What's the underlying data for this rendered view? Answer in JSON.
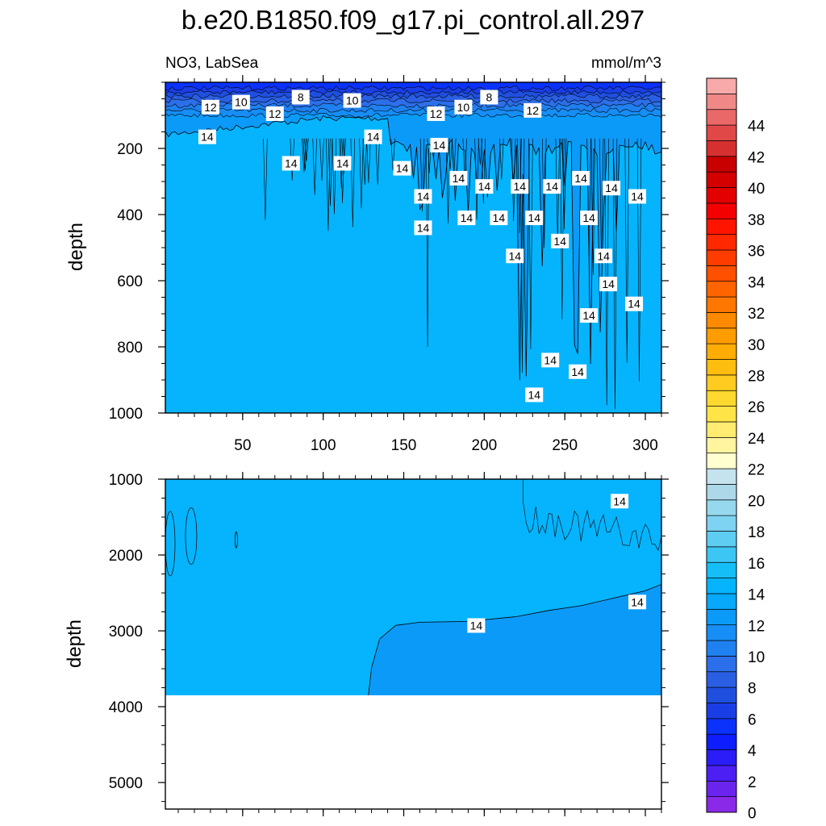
{
  "chart_data": {
    "type": "heatmap",
    "title": "b.e20.B1850.f09_g17.pi_control.all.297",
    "subtitle_left": "NO3, LabSea",
    "subtitle_right": "mmol/m^3",
    "panels": [
      {
        "name": "upper",
        "ylabel": "depth",
        "ylim": [
          1000,
          0
        ],
        "xlim": [
          2,
          310
        ],
        "xticks": [
          50,
          100,
          150,
          200,
          250,
          300
        ],
        "yticks": [
          200,
          400,
          600,
          800,
          1000
        ],
        "contour_labels": [
          {
            "text": "12",
            "x": 30,
            "y": 75
          },
          {
            "text": "10",
            "x": 49,
            "y": 60
          },
          {
            "text": "8",
            "x": 86,
            "y": 45
          },
          {
            "text": "12",
            "x": 70,
            "y": 95
          },
          {
            "text": "10",
            "x": 118,
            "y": 55
          },
          {
            "text": "12",
            "x": 170,
            "y": 95
          },
          {
            "text": "10",
            "x": 187,
            "y": 75
          },
          {
            "text": "8",
            "x": 203,
            "y": 45
          },
          {
            "text": "12",
            "x": 230,
            "y": 85
          },
          {
            "text": "14",
            "x": 28,
            "y": 165
          },
          {
            "text": "14",
            "x": 80,
            "y": 245
          },
          {
            "text": "14",
            "x": 112,
            "y": 245
          },
          {
            "text": "14",
            "x": 131,
            "y": 165
          },
          {
            "text": "14",
            "x": 149,
            "y": 260
          },
          {
            "text": "14",
            "x": 172,
            "y": 190
          },
          {
            "text": "14",
            "x": 184,
            "y": 290
          },
          {
            "text": "14",
            "x": 200,
            "y": 315
          },
          {
            "text": "14",
            "x": 222,
            "y": 315
          },
          {
            "text": "14",
            "x": 242,
            "y": 315
          },
          {
            "text": "14",
            "x": 260,
            "y": 290
          },
          {
            "text": "14",
            "x": 279,
            "y": 320
          },
          {
            "text": "14",
            "x": 295,
            "y": 345
          },
          {
            "text": "14",
            "x": 162,
            "y": 345
          },
          {
            "text": "14",
            "x": 162,
            "y": 440
          },
          {
            "text": "14",
            "x": 189,
            "y": 410
          },
          {
            "text": "14",
            "x": 209,
            "y": 410
          },
          {
            "text": "14",
            "x": 231,
            "y": 410
          },
          {
            "text": "14",
            "x": 265,
            "y": 410
          },
          {
            "text": "14",
            "x": 219,
            "y": 525
          },
          {
            "text": "14",
            "x": 247,
            "y": 480
          },
          {
            "text": "14",
            "x": 274,
            "y": 525
          },
          {
            "text": "14",
            "x": 277,
            "y": 610
          },
          {
            "text": "14",
            "x": 265,
            "y": 705
          },
          {
            "text": "14",
            "x": 293,
            "y": 670
          },
          {
            "text": "14",
            "x": 241,
            "y": 840
          },
          {
            "text": "14",
            "x": 258,
            "y": 875
          },
          {
            "text": "14",
            "x": 231,
            "y": 945
          }
        ]
      },
      {
        "name": "lower",
        "ylabel": "depth",
        "ylim": [
          5350,
          1000
        ],
        "xlim": [
          2,
          310
        ],
        "yticks": [
          1000,
          2000,
          3000,
          4000,
          5000
        ],
        "seafloor_depth": 3850,
        "contour_labels": [
          {
            "text": "14",
            "x": 284,
            "y": 1290
          },
          {
            "text": "14",
            "x": 195,
            "y": 2930
          },
          {
            "text": "14",
            "x": 295,
            "y": 2620
          }
        ]
      }
    ],
    "colorbar": {
      "labels": [
        "0",
        "2",
        "4",
        "6",
        "8",
        "10",
        "12",
        "14",
        "16",
        "18",
        "20",
        "22",
        "24",
        "26",
        "28",
        "30",
        "32",
        "34",
        "36",
        "38",
        "40",
        "42",
        "44"
      ],
      "colors": [
        "#8a29e8",
        "#6a24ee",
        "#4c1ff4",
        "#2a1df8",
        "#0d1dfb",
        "#0a32fb",
        "#1a3ee6",
        "#1f4fdf",
        "#2a5fe4",
        "#2c6fea",
        "#1f80f0",
        "#168ef5",
        "#0c9af8",
        "#08a8fb",
        "#05b4fd",
        "#16bef8",
        "#3cc6f4",
        "#5ecdf2",
        "#7dd3f1",
        "#96d8ee",
        "#add8ea",
        "#c4e3ef",
        "#ffffd0",
        "#fff4a0",
        "#ffec70",
        "#ffe448",
        "#ffd830",
        "#ffcb20",
        "#ffbd10",
        "#ffad05",
        "#ff9c00",
        "#ff8a00",
        "#ff7700",
        "#ff6400",
        "#ff5000",
        "#ff3c00",
        "#ff2800",
        "#ff1400",
        "#f50000",
        "#e30000",
        "#d30000",
        "#c80000",
        "#d73030",
        "#e04848",
        "#ea6868",
        "#f08888",
        "#f8aaaa"
      ],
      "min": 0,
      "step": 1
    }
  }
}
